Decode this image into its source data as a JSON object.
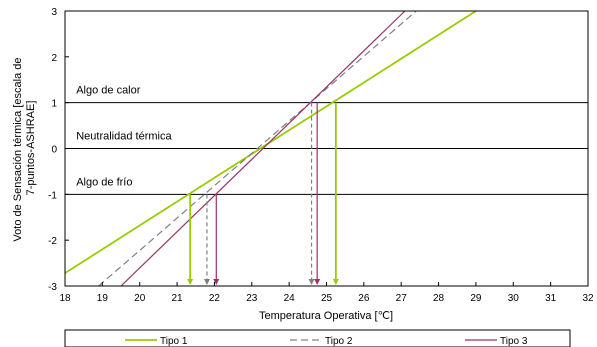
{
  "chart_data": {
    "type": "line",
    "xlabel": "Temperatura Operativa [℃]",
    "ylabel_lines": [
      "Voto de Sensación térmica [escala de",
      "7-puntos-ASHRAE]"
    ],
    "xlim": [
      18,
      32
    ],
    "ylim": [
      -3,
      3
    ],
    "xticks": [
      "18",
      "19",
      "20",
      "21",
      "22",
      "23",
      "24",
      "25",
      "26",
      "27",
      "28",
      "29",
      "30",
      "31",
      "32"
    ],
    "yticks": [
      "-3",
      "-2",
      "-1",
      "0",
      "1",
      "2",
      "3"
    ],
    "reference_lines": [
      {
        "y": 1,
        "label": "Algo de calor",
        "label_x": 18.3
      },
      {
        "y": 0,
        "label": "Neutralidad térmica",
        "label_x": 18.3
      },
      {
        "y": -1,
        "label": "Algo de frío",
        "label_x": 18.3
      }
    ],
    "series": [
      {
        "name": "Tipo 1",
        "color": "#99cc00",
        "dash": "solid",
        "x": [
          18.0,
          29.0
        ],
        "y": [
          -2.72,
          3.0
        ]
      },
      {
        "name": "Tipo 2",
        "color": "#808080",
        "dash": "dashed",
        "x": [
          18.9,
          27.4
        ],
        "y": [
          -3.0,
          3.0
        ]
      },
      {
        "name": "Tipo 3",
        "color": "#993366",
        "dash": "solid",
        "x": [
          19.5,
          27.1
        ],
        "y": [
          -3.0,
          3.0
        ]
      }
    ],
    "drop_lines": [
      {
        "series": "Tipo 1",
        "x": 21.35,
        "from_y": -1
      },
      {
        "series": "Tipo 1",
        "x": 25.25,
        "from_y": 1
      },
      {
        "series": "Tipo 2",
        "x": 21.8,
        "from_y": -1
      },
      {
        "series": "Tipo 2",
        "x": 24.6,
        "from_y": 1
      },
      {
        "series": "Tipo 3",
        "x": 22.05,
        "from_y": -1
      },
      {
        "series": "Tipo 3",
        "x": 24.75,
        "from_y": 1
      }
    ],
    "legend_position": "bottom"
  }
}
